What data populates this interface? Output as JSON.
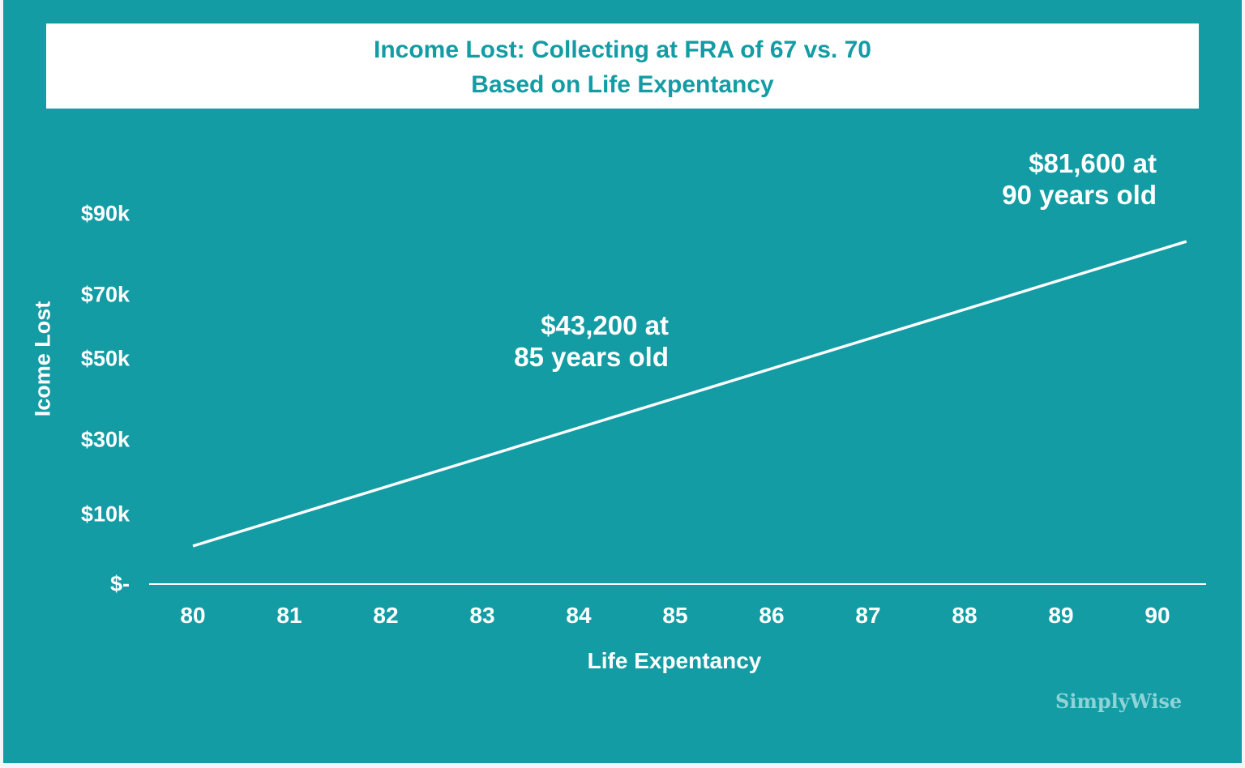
{
  "chart_data": {
    "type": "line",
    "title": "Income Lost: Collecting at FRA of 67 vs. 70",
    "subtitle": "Based on Life Expentancy",
    "xlabel": "Life Expentancy",
    "ylabel": "Icome Lost",
    "x": [
      80,
      81,
      82,
      83,
      84,
      85,
      86,
      87,
      88,
      89,
      90
    ],
    "series": [
      {
        "values": [
          4800,
          12480,
          20160,
          27840,
          35520,
          43200,
          50880,
          58560,
          66240,
          73920,
          81600
        ]
      }
    ],
    "xticks": [
      "80",
      "81",
      "82",
      "83",
      "84",
      "85",
      "86",
      "87",
      "88",
      "89",
      "90"
    ],
    "yticks": [
      {
        "value": 0,
        "label": "$-"
      },
      {
        "value": 10000,
        "label": "$10k"
      },
      {
        "value": 30000,
        "label": "$30k"
      },
      {
        "value": 50000,
        "label": "$50k"
      },
      {
        "value": 70000,
        "label": "$70k"
      },
      {
        "value": 90000,
        "label": "$90k"
      }
    ],
    "annotations": [
      {
        "line1": "$43,200 at",
        "line2": "85 years old"
      },
      {
        "line1": "$81,600 at",
        "line2": "90 years old"
      }
    ],
    "grid": false,
    "legend": "none",
    "colors": {
      "background": "#139ca4",
      "line": "#ffffff",
      "title": "#139ca4",
      "title_box": "#ffffff"
    }
  },
  "brand": {
    "logo_text": "SimplyWise"
  }
}
